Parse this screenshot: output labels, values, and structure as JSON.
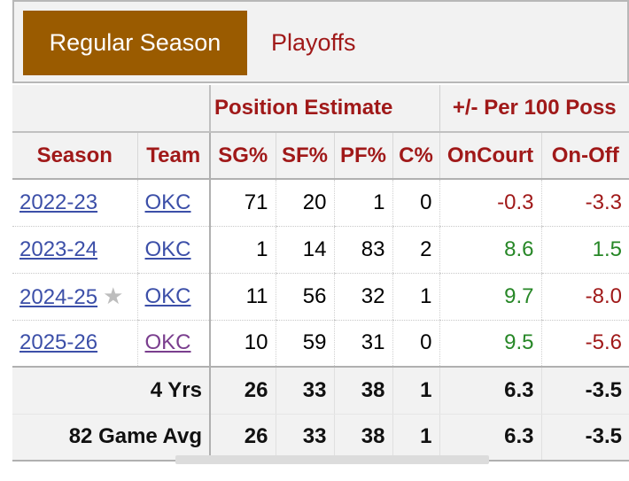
{
  "tabs": {
    "regular": "Regular Season",
    "playoffs": "Playoffs"
  },
  "overheaders": {
    "position": "Position Estimate",
    "plus_minus": "+/- Per 100 Poss"
  },
  "columns": [
    "Season",
    "Team",
    "SG%",
    "SF%",
    "PF%",
    "C%",
    "OnCourt",
    "On-Off"
  ],
  "rows": [
    {
      "season": "2022-23",
      "team": "OKC",
      "sg": "71",
      "sf": "20",
      "pf": "1",
      "c": "0",
      "oncourt": "-0.3",
      "onoff": "-3.3"
    },
    {
      "season": "2023-24",
      "team": "OKC",
      "sg": "1",
      "sf": "14",
      "pf": "83",
      "c": "2",
      "oncourt": "8.6",
      "onoff": "1.5"
    },
    {
      "season": "2024-25",
      "team": "OKC",
      "sg": "11",
      "sf": "56",
      "pf": "32",
      "c": "1",
      "oncourt": "9.7",
      "onoff": "-8.0",
      "star": "★"
    },
    {
      "season": "2025-26",
      "team": "OKC",
      "sg": "10",
      "sf": "59",
      "pf": "31",
      "c": "0",
      "oncourt": "9.5",
      "onoff": "-5.6"
    }
  ],
  "totals": [
    {
      "label": "4 Yrs",
      "sg": "26",
      "sf": "33",
      "pf": "38",
      "c": "1",
      "oncourt": "6.3",
      "onoff": "-3.5"
    },
    {
      "label": "82 Game Avg",
      "sg": "26",
      "sf": "33",
      "pf": "38",
      "c": "1",
      "oncourt": "6.3",
      "onoff": "-3.5"
    }
  ],
  "colors": {
    "accent": "#9a5b00",
    "header_text": "#a01919",
    "positive": "#278727",
    "negative": "#a01919",
    "link": "#3c4fa8"
  }
}
